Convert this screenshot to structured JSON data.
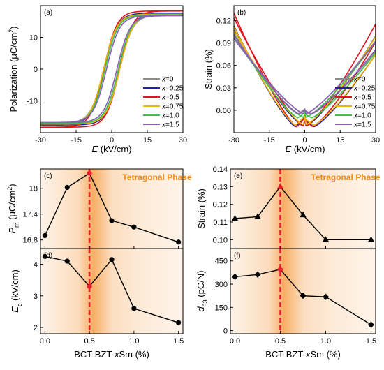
{
  "colors": {
    "x0": "#8c8c8c",
    "x025": "#1f1fa8",
    "x05": "#e0141e",
    "x075": "#f0b400",
    "x10": "#3fbf4f",
    "x15": "#8c5fb4",
    "marker_black": "#000000",
    "marker_red": "#e8202a",
    "highlight_line": "#e8202a",
    "phase_text": "#f08a1c",
    "shade": "#f6a04a"
  },
  "chart_data": [
    {
      "id": "a",
      "type": "line",
      "panel_label": "(a)",
      "xlabel": "E (kV/cm)",
      "ylabel": "Polarization (μC/cm²)",
      "xlim": [
        -30,
        30
      ],
      "ylim": [
        -20,
        20
      ],
      "xticks": [
        -30,
        -15,
        0,
        15,
        30
      ],
      "yticks": [
        -10,
        0,
        10
      ],
      "legend_position": "lower-right",
      "series": [
        {
          "name": "x=0",
          "color_key": "x0",
          "Ec": 3.4,
          "Pm": 17.0,
          "Pr": 5.0
        },
        {
          "name": "x=0.25",
          "color_key": "x025",
          "Ec": 3.3,
          "Pm": 17.6,
          "Pr": 6.0
        },
        {
          "name": "x=0.5",
          "color_key": "x05",
          "Ec": 3.3,
          "Pm": 18.3,
          "Pr": 7.0
        },
        {
          "name": "x=0.75",
          "color_key": "x075",
          "Ec": 3.4,
          "Pm": 17.3,
          "Pr": 6.0
        },
        {
          "name": "x=1.0",
          "color_key": "x10",
          "Ec": 2.8,
          "Pm": 17.1,
          "Pr": 4.5
        },
        {
          "name": "x=1.5",
          "color_key": "x15",
          "Ec": 2.2,
          "Pm": 16.8,
          "Pr": 3.5
        }
      ]
    },
    {
      "id": "b",
      "type": "line",
      "panel_label": "(b)",
      "xlabel": "E (kV/cm)",
      "ylabel": "Strain (%)",
      "xlim": [
        -30,
        30
      ],
      "ylim": [
        -0.03,
        0.14
      ],
      "xticks": [
        -30,
        -15,
        0,
        15,
        30
      ],
      "yticks": [
        0.0,
        0.03,
        0.06,
        0.09,
        0.12
      ],
      "ytick_labels": [
        "0.00",
        "0.03",
        "0.06",
        "0.09",
        "0.12"
      ],
      "legend_position": "lower-right",
      "series": [
        {
          "name": "x=0",
          "color_key": "x0",
          "Smax": 0.103,
          "Sneg": -0.005,
          "Ec": 3.0
        },
        {
          "name": "x=0.25",
          "color_key": "x025",
          "Smax": 0.113,
          "Sneg": -0.022,
          "Ec": 4.0
        },
        {
          "name": "x=0.5",
          "color_key": "x05",
          "Smax": 0.13,
          "Sneg": -0.022,
          "Ec": 3.5
        },
        {
          "name": "x=0.75",
          "color_key": "x075",
          "Smax": 0.112,
          "Sneg": -0.02,
          "Ec": 4.0
        },
        {
          "name": "x=1.0",
          "color_key": "x10",
          "Smax": 0.102,
          "Sneg": -0.01,
          "Ec": 3.0
        },
        {
          "name": "x=1.5",
          "color_key": "x15",
          "Smax": 0.101,
          "Sneg": -0.005,
          "Ec": 2.5
        }
      ]
    },
    {
      "id": "c",
      "type": "line",
      "panel_label": "(c)",
      "ylabel": "Pm (μC/cm²)",
      "phase_label": "Tetragonal Phase",
      "xlim": [
        -0.05,
        1.55
      ],
      "ylim": [
        16.6,
        18.45
      ],
      "xticks": [
        0.0,
        0.5,
        1.0,
        1.5
      ],
      "yticks": [
        16.8,
        17.4,
        18.0
      ],
      "highlight_x": 0.5,
      "marker": "circle",
      "x": [
        0.0,
        0.25,
        0.5,
        0.75,
        1.0,
        1.5
      ],
      "y": [
        16.9,
        18.02,
        18.35,
        17.25,
        17.1,
        16.75
      ]
    },
    {
      "id": "d",
      "type": "line",
      "panel_label": "(d)",
      "xlabel": "BCT-BZT-xSm (%)",
      "ylabel": "Ec (kV/cm)",
      "xlim": [
        -0.05,
        1.55
      ],
      "ylim": [
        1.8,
        4.5
      ],
      "xticks": [
        0.0,
        0.5,
        1.0,
        1.5
      ],
      "xtick_labels": [
        "0.0",
        "0.5",
        "1.0",
        "1.5"
      ],
      "yticks": [
        2,
        3,
        4
      ],
      "highlight_x": 0.5,
      "marker": "circle",
      "x": [
        0.0,
        0.25,
        0.5,
        0.75,
        1.0,
        1.5
      ],
      "y": [
        4.25,
        4.1,
        3.3,
        4.15,
        2.6,
        2.15
      ]
    },
    {
      "id": "e",
      "type": "line",
      "panel_label": "(e)",
      "ylabel": "Strain (%)",
      "phase_label": "Tetragonal Phase",
      "xlim": [
        -0.05,
        1.55
      ],
      "ylim": [
        0.095,
        0.14
      ],
      "xticks": [
        0.0,
        0.5,
        1.0,
        1.5
      ],
      "yticks": [
        0.1,
        0.11,
        0.12,
        0.13,
        0.14
      ],
      "ytick_labels": [
        "0.10",
        "0.11",
        "0.12",
        "0.13",
        "0.14"
      ],
      "highlight_x": 0.5,
      "marker": "triangle",
      "x": [
        0.0,
        0.25,
        0.5,
        0.75,
        1.0,
        1.5
      ],
      "y": [
        0.112,
        0.113,
        0.13,
        0.114,
        0.1,
        0.1
      ]
    },
    {
      "id": "f",
      "type": "line",
      "panel_label": "(f)",
      "xlabel": "BCT-BZT-xSm (%)",
      "ylabel": "d33 (pC/N)",
      "xlim": [
        -0.05,
        1.55
      ],
      "ylim": [
        -20,
        530
      ],
      "xticks": [
        0.0,
        0.5,
        1.0,
        1.5
      ],
      "xtick_labels": [
        "0.0",
        "0.5",
        "1.0",
        "1.5"
      ],
      "yticks": [
        0,
        150,
        300,
        450
      ],
      "highlight_x": 0.5,
      "marker": "diamond",
      "x": [
        0.0,
        0.25,
        0.5,
        0.75,
        1.0,
        1.5
      ],
      "y": [
        348,
        362,
        395,
        225,
        218,
        38
      ]
    }
  ]
}
